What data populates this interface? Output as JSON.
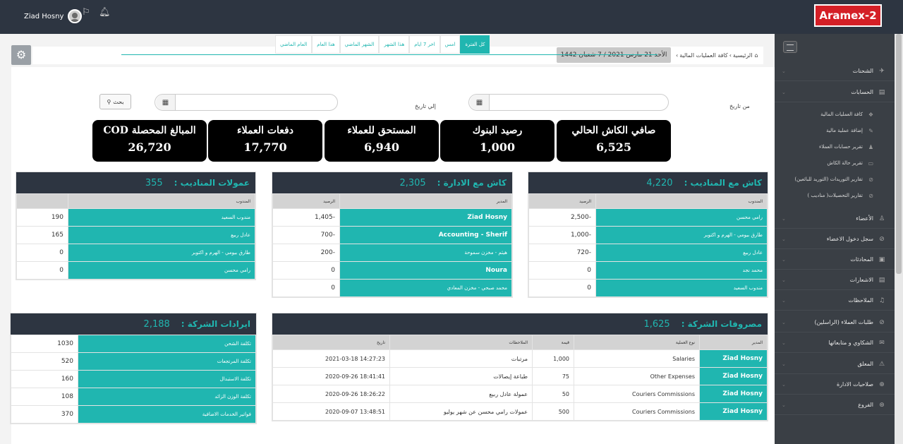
{
  "topbar": {
    "user_name": "Ziad Hosny",
    "brand": "Aramex-2",
    "flag_icon": "flag-icon",
    "bell_icon": "bell-icon"
  },
  "breadcrumb": {
    "home": "الرئيسية",
    "current": "كافة العمليات المالية",
    "date": "الأحد 21 مارس 2021 / 7 شعبان 1442"
  },
  "tabs": [
    "كل الفترة",
    "امس",
    "اخر 7 ايام",
    "هذا الشهر",
    "الشهر الماضي",
    "هذا العام",
    "العام الماضي"
  ],
  "filters": {
    "from_label": "من تاريخ",
    "to_label": "إلي تاريخ",
    "search_label": "بحث"
  },
  "stats": [
    {
      "title": "صافي الكاش الحالي",
      "value": "6,525"
    },
    {
      "title": "رصيد البنوك",
      "value": "1,000"
    },
    {
      "title": "المستحق للعملاء",
      "value": "6,940"
    },
    {
      "title": "دفعات العملاء",
      "value": "17,770"
    },
    {
      "title": "المبالغ المحصلة COD",
      "value": "26,720"
    }
  ],
  "cash_reps": {
    "title": "كاش مع المناديب :",
    "total": "4,220",
    "headers": [
      "المندوب",
      "الرصيد"
    ],
    "rows": [
      [
        "رامي محسن",
        "2,500-"
      ],
      [
        "طارق بيومي - الهرم و اكتوبر",
        "1,000-"
      ],
      [
        "عادل ربيع",
        "720-"
      ],
      [
        "محمد نجد",
        "0"
      ],
      [
        "مندوب السعيد",
        "0"
      ]
    ]
  },
  "cash_admin": {
    "title": "كاش مع الادارة :",
    "total": "2,305",
    "headers": [
      "المدير",
      "الرصيد"
    ],
    "rows": [
      [
        "Ziad Hosny",
        "1,405-"
      ],
      [
        "Accounting - Sherif",
        "700-"
      ],
      [
        "هيثم - مخزن سموحة",
        "200-"
      ],
      [
        "Noura",
        "0"
      ],
      [
        "محمد صبحي - مخزن المعادي",
        "0"
      ]
    ]
  },
  "rep_commissions": {
    "title": "عمولات المناديب :",
    "total": "355",
    "headers": [
      "المندوب",
      ""
    ],
    "rows": [
      [
        "مندوب السعيد",
        "190"
      ],
      [
        "عادل ربيع",
        "165"
      ],
      [
        "طارق بيومي - الهرم و اكتوبر",
        "0"
      ],
      [
        "رامي محسن",
        "0"
      ]
    ]
  },
  "expenses": {
    "title": "مصروفات الشركة :",
    "total": "1,625",
    "headers": [
      "المدير",
      "نوع العملية",
      "قيمة",
      "الملاحظات",
      "تاريخ"
    ],
    "rows": [
      [
        "Ziad Hosny",
        "Salaries",
        "1,000",
        "مرتبات",
        "2021-03-18 14:27:23"
      ],
      [
        "Ziad Hosny",
        "Other Expenses",
        "75",
        "طباعة إيصالات",
        "2020-09-26 18:41:41"
      ],
      [
        "Ziad Hosny",
        "Couriers Commissions",
        "50",
        "عمولة عادل ربيع",
        "2020-09-26 18:26:22"
      ],
      [
        "Ziad Hosny",
        "Couriers Commissions",
        "500",
        "عمولات رامي محسن عن شهر يوليو",
        "2020-09-07 13:48:51"
      ]
    ]
  },
  "revenues": {
    "title": "ايرادات الشركة :",
    "total": "2,188",
    "rows": [
      [
        "تكلفة الشحن",
        "1030"
      ],
      [
        "تكلفة المرتجعات",
        "520"
      ],
      [
        "تكلفة الاستبدال",
        "160"
      ],
      [
        "تكلفة الوزن الزائد",
        "108"
      ],
      [
        "فواتير الخدمات الاضافية",
        "370"
      ]
    ]
  },
  "sidebar": {
    "items": [
      {
        "label": "الشحنات",
        "icon": "rocket-icon",
        "sub": false
      },
      {
        "label": "الحسابات",
        "icon": "calculator-icon",
        "sub": false
      },
      {
        "label": "كافة العمليات المالية",
        "icon": "money-icon",
        "sub": true
      },
      {
        "label": "إضافة عملية مالية",
        "icon": "plus-icon",
        "sub": true
      },
      {
        "label": "تقرير حسابات العملاء",
        "icon": "users-icon",
        "sub": true
      },
      {
        "label": "تقرير حالة الكاش",
        "icon": "cash-icon",
        "sub": true
      },
      {
        "label": "تقارير التوريدات (التوريد للبائعين)",
        "icon": "report-icon",
        "sub": true
      },
      {
        "label": "تقارير التحصيلات( مناديب )",
        "icon": "report-icon",
        "sub": true
      },
      {
        "label": "الأعضاء",
        "icon": "user-icon",
        "sub": false
      },
      {
        "label": "سجل دخول الاعضاء",
        "icon": "login-icon",
        "sub": false
      },
      {
        "label": "المحادثات",
        "icon": "chat-icon",
        "sub": false
      },
      {
        "label": "الاشعارات",
        "icon": "notify-icon",
        "sub": false
      },
      {
        "label": "الملاحظات",
        "icon": "bell-icon",
        "sub": false
      },
      {
        "label": "طلبات العملاء (الراسلين)",
        "icon": "orders-icon",
        "sub": false
      },
      {
        "label": "الشكاوي و متابعاتها",
        "icon": "complaint-icon",
        "sub": false
      },
      {
        "label": "المعلق",
        "icon": "pending-icon",
        "sub": false
      },
      {
        "label": "صلاحيات الادارة",
        "icon": "permissions-icon",
        "sub": false
      },
      {
        "label": "الفروع",
        "icon": "branches-icon",
        "sub": false
      }
    ]
  }
}
